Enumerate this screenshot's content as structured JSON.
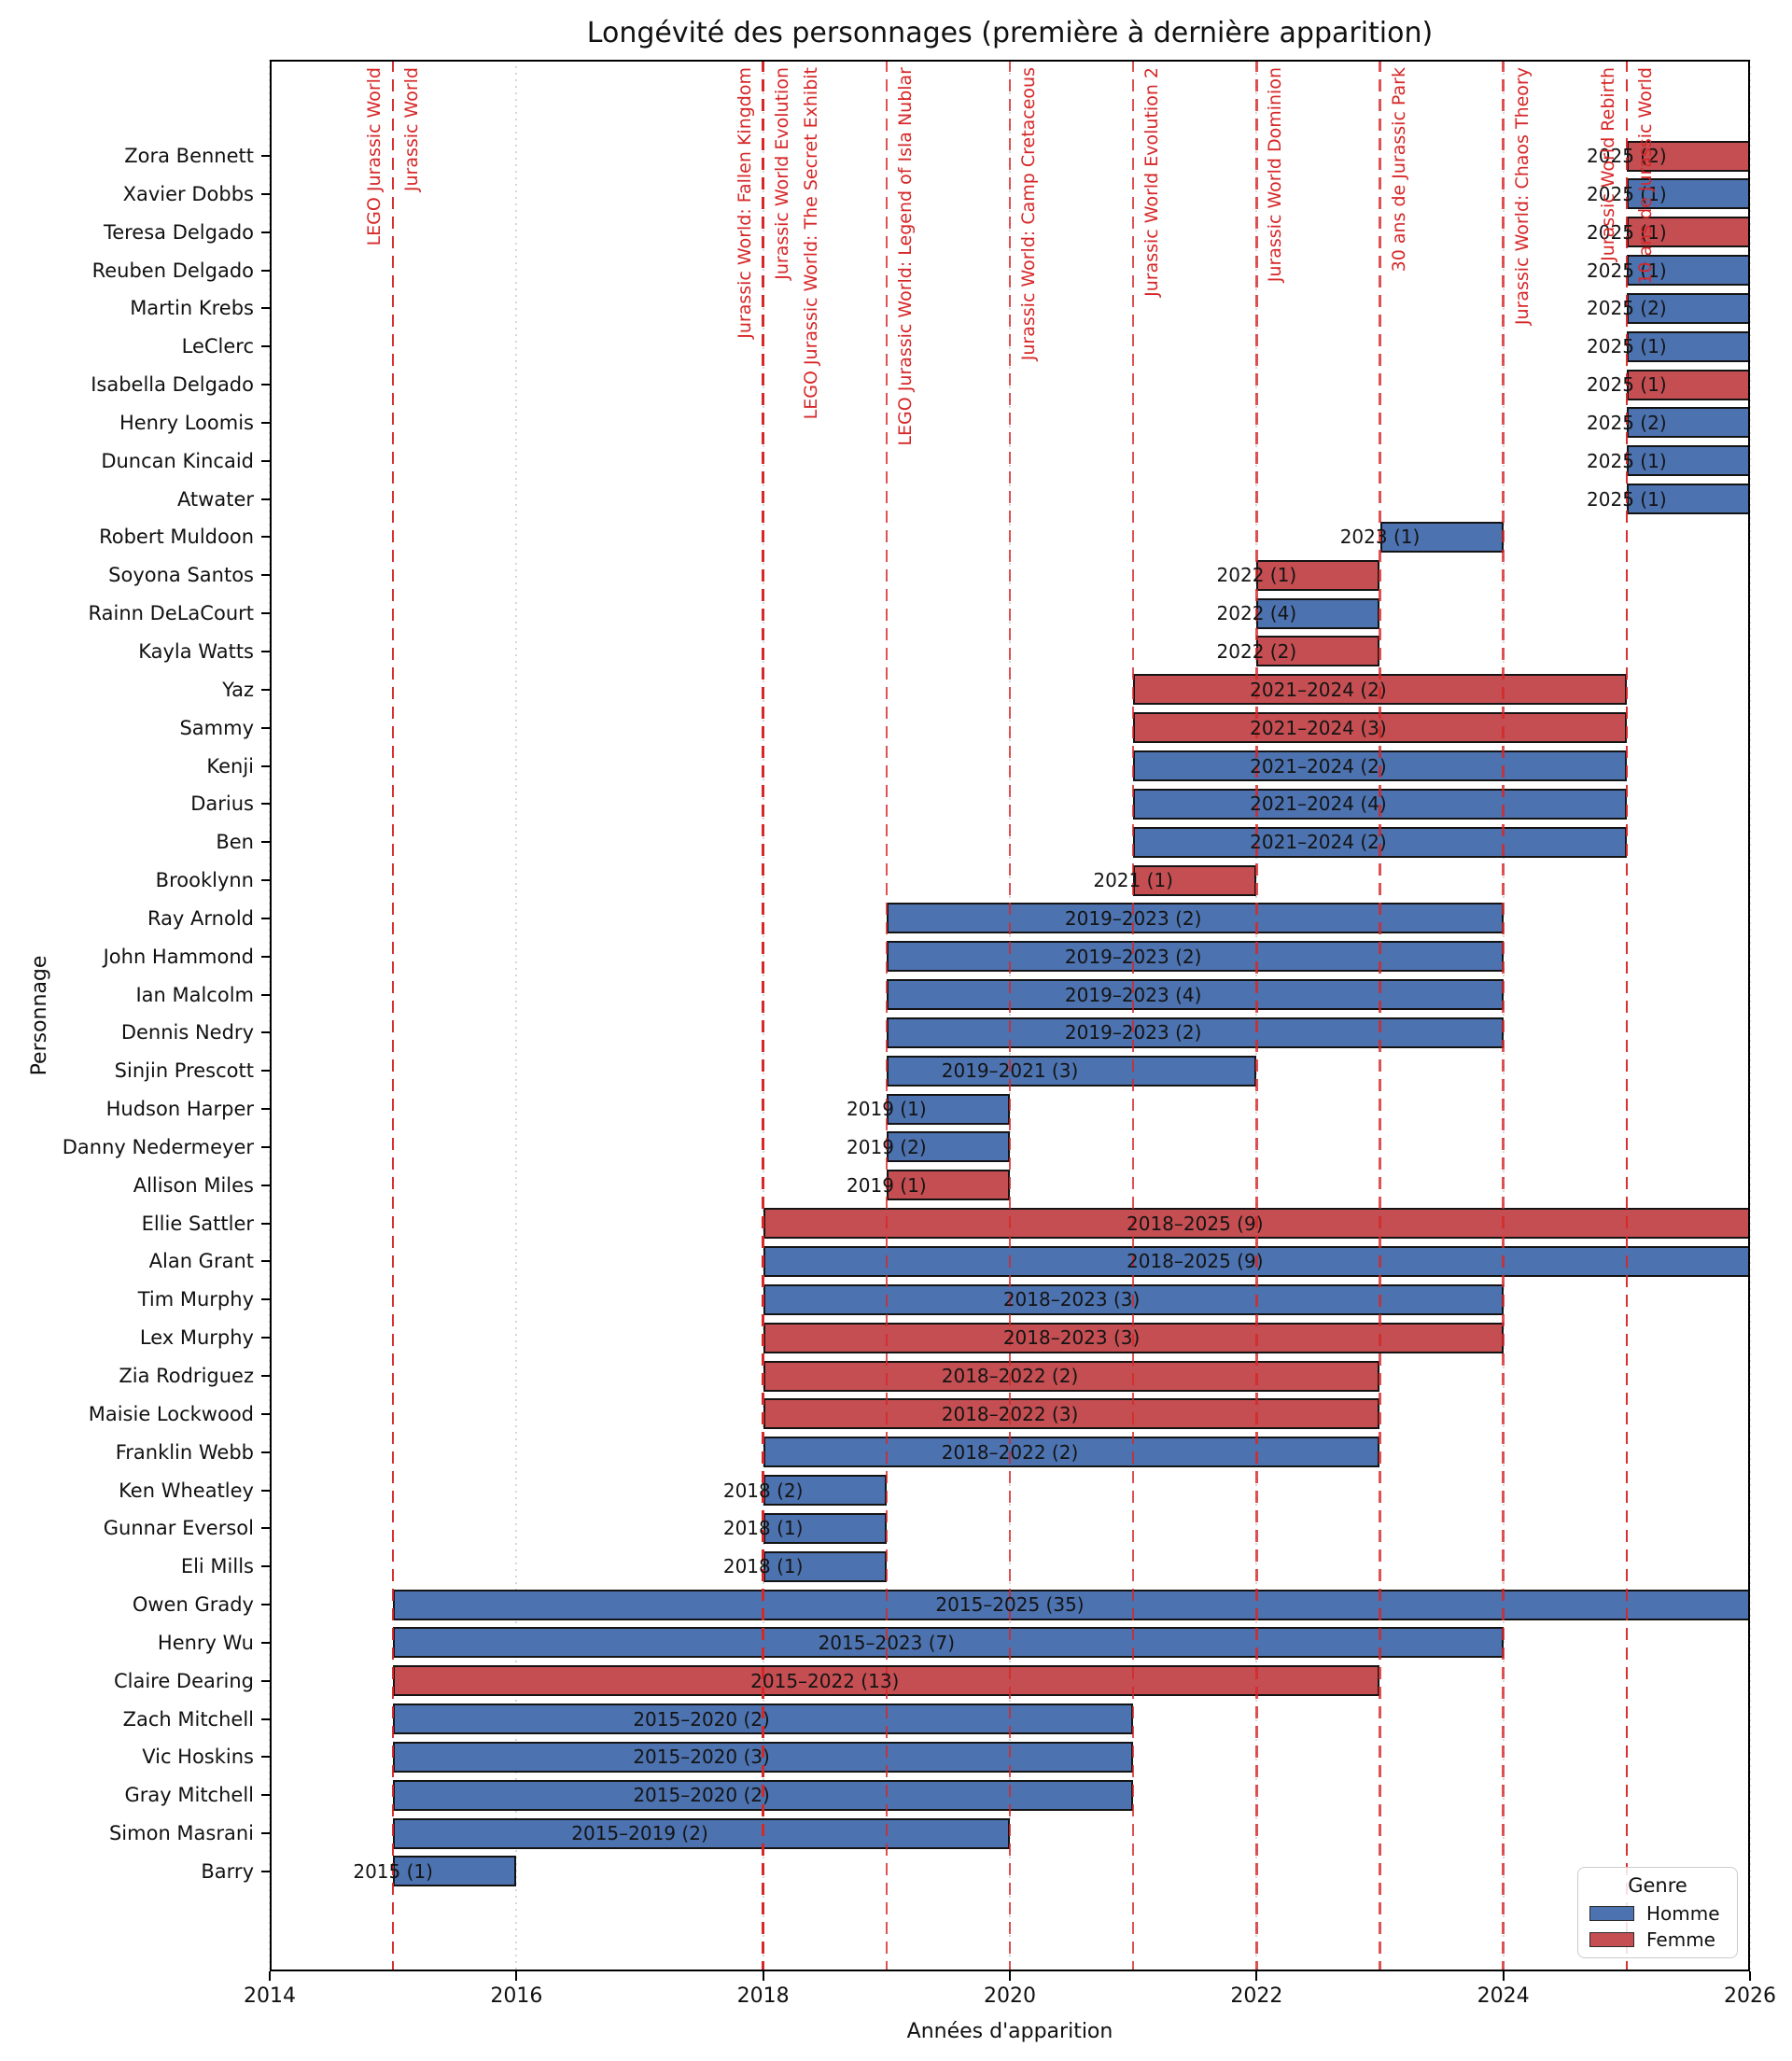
{
  "chart_data": {
    "type": "bar",
    "orientation": "horizontal_gantt",
    "title": "Longévité des personnages (première à dernière apparition)",
    "xlabel": "Années d'apparition",
    "ylabel": "Personnage",
    "x_range": [
      2014,
      2026
    ],
    "x_ticks": [
      2014,
      2016,
      2018,
      2020,
      2022,
      2024,
      2026
    ],
    "grid": "dotted-vertical-at-ticks",
    "event_line_color": "#D62728",
    "gender_colors": {
      "Homme": "#4C72B0",
      "Femme": "#C44E52"
    },
    "legend": {
      "title": "Genre",
      "position": "bottom-right",
      "items": [
        {
          "label": "Homme",
          "color": "#4C72B0"
        },
        {
          "label": "Femme",
          "color": "#C44E52"
        }
      ]
    },
    "events": [
      {
        "label": "LEGO Jurassic World",
        "year": 2015,
        "side": "left"
      },
      {
        "label": "Jurassic World",
        "year": 2015,
        "side": "right"
      },
      {
        "label": "Jurassic World: Fallen Kingdom",
        "year": 2018,
        "side": "left"
      },
      {
        "label": "Jurassic World Evolution",
        "year": 2018,
        "side": "right"
      },
      {
        "label": "LEGO Jurassic World: The Secret Exhibit",
        "year": 2018,
        "side": "right-far"
      },
      {
        "label": "LEGO Jurassic World: Legend of Isla Nublar",
        "year": 2019,
        "side": "right"
      },
      {
        "label": "Jurassic World: Camp Cretaceous",
        "year": 2020,
        "side": "right"
      },
      {
        "label": "Jurassic World Evolution 2",
        "year": 2021,
        "side": "right"
      },
      {
        "label": "Jurassic World Dominion",
        "year": 2022,
        "side": "right"
      },
      {
        "label": "30 ans de Jurassic Park",
        "year": 2023,
        "side": "right"
      },
      {
        "label": "Jurassic World: Chaos Theory",
        "year": 2024,
        "side": "right"
      },
      {
        "label": "Jurassic World Rebirth",
        "year": 2025,
        "side": "left"
      },
      {
        "label": "10 ans de Jurassic World",
        "year": 2025,
        "side": "right"
      }
    ],
    "characters": [
      {
        "name": "Zora Bennett",
        "gender": "Femme",
        "first": 2025,
        "last": 2025,
        "count": 2,
        "label": "2025 (2)"
      },
      {
        "name": "Xavier Dobbs",
        "gender": "Homme",
        "first": 2025,
        "last": 2025,
        "count": 1,
        "label": "2025 (1)"
      },
      {
        "name": "Teresa Delgado",
        "gender": "Femme",
        "first": 2025,
        "last": 2025,
        "count": 1,
        "label": "2025 (1)"
      },
      {
        "name": "Reuben Delgado",
        "gender": "Homme",
        "first": 2025,
        "last": 2025,
        "count": 1,
        "label": "2025 (1)"
      },
      {
        "name": "Martin Krebs",
        "gender": "Homme",
        "first": 2025,
        "last": 2025,
        "count": 2,
        "label": "2025 (2)"
      },
      {
        "name": "LeClerc",
        "gender": "Homme",
        "first": 2025,
        "last": 2025,
        "count": 1,
        "label": "2025 (1)"
      },
      {
        "name": "Isabella Delgado",
        "gender": "Femme",
        "first": 2025,
        "last": 2025,
        "count": 1,
        "label": "2025 (1)"
      },
      {
        "name": "Henry Loomis",
        "gender": "Homme",
        "first": 2025,
        "last": 2025,
        "count": 2,
        "label": "2025 (2)"
      },
      {
        "name": "Duncan Kincaid",
        "gender": "Homme",
        "first": 2025,
        "last": 2025,
        "count": 1,
        "label": "2025 (1)"
      },
      {
        "name": "Atwater",
        "gender": "Homme",
        "first": 2025,
        "last": 2025,
        "count": 1,
        "label": "2025 (1)"
      },
      {
        "name": "Robert Muldoon",
        "gender": "Homme",
        "first": 2023,
        "last": 2023,
        "count": 1,
        "label": "2023 (1)"
      },
      {
        "name": "Soyona Santos",
        "gender": "Femme",
        "first": 2022,
        "last": 2022,
        "count": 1,
        "label": "2022 (1)"
      },
      {
        "name": "Rainn DeLaCourt",
        "gender": "Homme",
        "first": 2022,
        "last": 2022,
        "count": 4,
        "label": "2022 (4)"
      },
      {
        "name": "Kayla Watts",
        "gender": "Femme",
        "first": 2022,
        "last": 2022,
        "count": 2,
        "label": "2022 (2)"
      },
      {
        "name": "Yaz",
        "gender": "Femme",
        "first": 2021,
        "last": 2024,
        "count": 2,
        "label": "2021–2024 (2)"
      },
      {
        "name": "Sammy",
        "gender": "Femme",
        "first": 2021,
        "last": 2024,
        "count": 3,
        "label": "2021–2024 (3)"
      },
      {
        "name": "Kenji",
        "gender": "Homme",
        "first": 2021,
        "last": 2024,
        "count": 2,
        "label": "2021–2024 (2)"
      },
      {
        "name": "Darius",
        "gender": "Homme",
        "first": 2021,
        "last": 2024,
        "count": 4,
        "label": "2021–2024 (4)"
      },
      {
        "name": "Ben",
        "gender": "Homme",
        "first": 2021,
        "last": 2024,
        "count": 2,
        "label": "2021–2024 (2)"
      },
      {
        "name": "Brooklynn",
        "gender": "Femme",
        "first": 2021,
        "last": 2021,
        "count": 1,
        "label": "2021 (1)"
      },
      {
        "name": "Ray Arnold",
        "gender": "Homme",
        "first": 2019,
        "last": 2023,
        "count": 2,
        "label": "2019–2023 (2)"
      },
      {
        "name": "John Hammond",
        "gender": "Homme",
        "first": 2019,
        "last": 2023,
        "count": 2,
        "label": "2019–2023 (2)"
      },
      {
        "name": "Ian Malcolm",
        "gender": "Homme",
        "first": 2019,
        "last": 2023,
        "count": 4,
        "label": "2019–2023 (4)"
      },
      {
        "name": "Dennis Nedry",
        "gender": "Homme",
        "first": 2019,
        "last": 2023,
        "count": 2,
        "label": "2019–2023 (2)"
      },
      {
        "name": "Sinjin Prescott",
        "gender": "Homme",
        "first": 2019,
        "last": 2021,
        "count": 3,
        "label": "2019–2021 (3)"
      },
      {
        "name": "Hudson Harper",
        "gender": "Homme",
        "first": 2019,
        "last": 2019,
        "count": 1,
        "label": "2019 (1)"
      },
      {
        "name": "Danny Nedermeyer",
        "gender": "Homme",
        "first": 2019,
        "last": 2019,
        "count": 2,
        "label": "2019 (2)"
      },
      {
        "name": "Allison Miles",
        "gender": "Femme",
        "first": 2019,
        "last": 2019,
        "count": 1,
        "label": "2019 (1)"
      },
      {
        "name": "Ellie Sattler",
        "gender": "Femme",
        "first": 2018,
        "last": 2025,
        "count": 9,
        "label": "2018–2025 (9)"
      },
      {
        "name": "Alan Grant",
        "gender": "Homme",
        "first": 2018,
        "last": 2025,
        "count": 9,
        "label": "2018–2025 (9)"
      },
      {
        "name": "Tim Murphy",
        "gender": "Homme",
        "first": 2018,
        "last": 2023,
        "count": 3,
        "label": "2018–2023 (3)"
      },
      {
        "name": "Lex Murphy",
        "gender": "Femme",
        "first": 2018,
        "last": 2023,
        "count": 3,
        "label": "2018–2023 (3)"
      },
      {
        "name": "Zia Rodriguez",
        "gender": "Femme",
        "first": 2018,
        "last": 2022,
        "count": 2,
        "label": "2018–2022 (2)"
      },
      {
        "name": "Maisie Lockwood",
        "gender": "Femme",
        "first": 2018,
        "last": 2022,
        "count": 3,
        "label": "2018–2022 (3)"
      },
      {
        "name": "Franklin Webb",
        "gender": "Homme",
        "first": 2018,
        "last": 2022,
        "count": 2,
        "label": "2018–2022 (2)"
      },
      {
        "name": "Ken Wheatley",
        "gender": "Homme",
        "first": 2018,
        "last": 2018,
        "count": 2,
        "label": "2018 (2)"
      },
      {
        "name": "Gunnar Eversol",
        "gender": "Homme",
        "first": 2018,
        "last": 2018,
        "count": 1,
        "label": "2018 (1)"
      },
      {
        "name": "Eli Mills",
        "gender": "Homme",
        "first": 2018,
        "last": 2018,
        "count": 1,
        "label": "2018 (1)"
      },
      {
        "name": "Owen Grady",
        "gender": "Homme",
        "first": 2015,
        "last": 2025,
        "count": 35,
        "label": "2015–2025 (35)"
      },
      {
        "name": "Henry Wu",
        "gender": "Homme",
        "first": 2015,
        "last": 2023,
        "count": 7,
        "label": "2015–2023 (7)"
      },
      {
        "name": "Claire Dearing",
        "gender": "Femme",
        "first": 2015,
        "last": 2022,
        "count": 13,
        "label": "2015–2022 (13)"
      },
      {
        "name": "Zach Mitchell",
        "gender": "Homme",
        "first": 2015,
        "last": 2020,
        "count": 2,
        "label": "2015–2020 (2)"
      },
      {
        "name": "Vic Hoskins",
        "gender": "Homme",
        "first": 2015,
        "last": 2020,
        "count": 3,
        "label": "2015–2020 (3)"
      },
      {
        "name": "Gray Mitchell",
        "gender": "Homme",
        "first": 2015,
        "last": 2020,
        "count": 2,
        "label": "2015–2020 (2)"
      },
      {
        "name": "Simon Masrani",
        "gender": "Homme",
        "first": 2015,
        "last": 2019,
        "count": 2,
        "label": "2015–2019 (2)"
      },
      {
        "name": "Barry",
        "gender": "Homme",
        "first": 2015,
        "last": 2015,
        "count": 1,
        "label": "2015 (1)"
      }
    ]
  }
}
